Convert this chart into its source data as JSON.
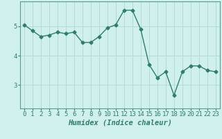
{
  "x": [
    0,
    1,
    2,
    3,
    4,
    5,
    6,
    7,
    8,
    9,
    10,
    11,
    12,
    13,
    14,
    15,
    16,
    17,
    18,
    19,
    20,
    21,
    22,
    23
  ],
  "y": [
    5.05,
    4.85,
    4.65,
    4.7,
    4.8,
    4.75,
    4.8,
    4.45,
    4.45,
    4.65,
    4.95,
    5.05,
    5.55,
    5.55,
    4.9,
    3.7,
    3.25,
    3.45,
    2.65,
    3.45,
    3.65,
    3.65,
    3.5,
    3.45
  ],
  "line_color": "#2e7d6e",
  "marker": "D",
  "markersize": 2.5,
  "linewidth": 1.0,
  "background_color": "#cff0ec",
  "grid_color": "#b0d8d4",
  "xlabel": "Humidex (Indice chaleur)",
  "xlabel_fontsize": 7.5,
  "tick_fontsize": 6.5,
  "xlim": [
    -0.5,
    23.5
  ],
  "ylim": [
    2.2,
    5.85
  ],
  "yticks": [
    3,
    4,
    5
  ],
  "xticks": [
    0,
    1,
    2,
    3,
    4,
    5,
    6,
    7,
    8,
    9,
    10,
    11,
    12,
    13,
    14,
    15,
    16,
    17,
    18,
    19,
    20,
    21,
    22,
    23
  ]
}
